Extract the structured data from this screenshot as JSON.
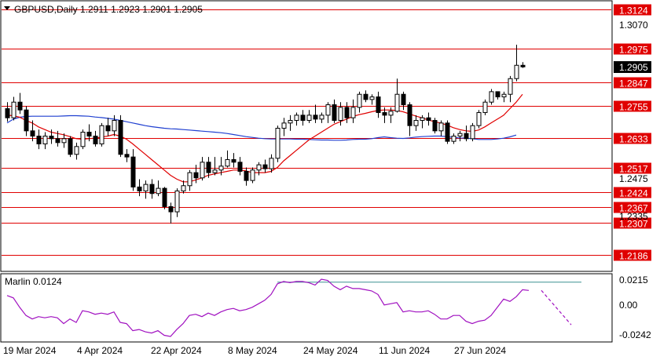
{
  "header": {
    "symbol_line": "GBPUSD,Daily  1.2911  1.2923  1.2901  1.2905"
  },
  "indicator": {
    "label": "Marlin 0.0124",
    "ticks": [
      "0.0215",
      "0.00",
      "-0.0242"
    ]
  },
  "price_axis": {
    "ticks": [
      "1.3070",
      "1.2475",
      "1.2335"
    ],
    "current_price": "1.2905"
  },
  "levels": [
    {
      "label": "1.3124",
      "value": 1.3124
    },
    {
      "label": "1.2975",
      "value": 1.2975
    },
    {
      "label": "1.2847",
      "value": 1.2847
    },
    {
      "label": "1.2755",
      "value": 1.2755
    },
    {
      "label": "1.2633",
      "value": 1.2633
    },
    {
      "label": "1.2517",
      "value": 1.2517
    },
    {
      "label": "1.2424",
      "value": 1.2424
    },
    {
      "label": "1.2367",
      "value": 1.2367
    },
    {
      "label": "1.2307",
      "value": 1.2307
    },
    {
      "label": "1.2186",
      "value": 1.2186
    }
  ],
  "time_axis": {
    "labels": [
      "19 Mar 2024",
      "4 Apr 2024",
      "22 Apr 2024",
      "8 May 2024",
      "24 May 2024",
      "11 Jun 2024",
      "27 Jun 2024"
    ]
  },
  "colors": {
    "level_line": "#e00000",
    "level_badge": "#e00000",
    "bull_fill": "#ffffff",
    "bear_fill": "#000000",
    "ma_fast": "#e00000",
    "ma_slow": "#1f3fd0",
    "oscillator": "#a010c0",
    "signal": "#3a9090"
  },
  "chart_data": {
    "type": "candlestick",
    "symbol": "GBPUSD",
    "timeframe": "Daily",
    "ylim": [
      1.2125,
      1.3155
    ],
    "candles": [
      [
        1.2745,
        1.277,
        1.2695,
        1.271
      ],
      [
        1.271,
        1.279,
        1.27,
        1.277
      ],
      [
        1.277,
        1.2805,
        1.2725,
        1.274
      ],
      [
        1.274,
        1.2755,
        1.264,
        1.266
      ],
      [
        1.266,
        1.27,
        1.262,
        1.264
      ],
      [
        1.264,
        1.2665,
        1.259,
        1.261
      ],
      [
        1.261,
        1.2655,
        1.259,
        1.264
      ],
      [
        1.264,
        1.2665,
        1.261,
        1.263
      ],
      [
        1.263,
        1.266,
        1.26,
        1.2615
      ],
      [
        1.2615,
        1.265,
        1.2595,
        1.263
      ],
      [
        1.263,
        1.264,
        1.256,
        1.257
      ],
      [
        1.257,
        1.2615,
        1.255,
        1.26
      ],
      [
        1.26,
        1.2665,
        1.259,
        1.2655
      ],
      [
        1.2655,
        1.2685,
        1.262,
        1.264
      ],
      [
        1.264,
        1.266,
        1.26,
        1.261
      ],
      [
        1.261,
        1.269,
        1.26,
        1.268
      ],
      [
        1.268,
        1.271,
        1.264,
        1.266
      ],
      [
        1.266,
        1.272,
        1.264,
        1.27
      ],
      [
        1.27,
        1.272,
        1.256,
        1.257
      ],
      [
        1.257,
        1.259,
        1.254,
        1.256
      ],
      [
        1.256,
        1.259,
        1.243,
        1.2445
      ],
      [
        1.2445,
        1.2475,
        1.241,
        1.243
      ],
      [
        1.243,
        1.247,
        1.24,
        1.2455
      ],
      [
        1.2455,
        1.2475,
        1.24,
        1.242
      ],
      [
        1.242,
        1.247,
        1.241,
        1.244
      ],
      [
        1.244,
        1.2445,
        1.236,
        1.237
      ],
      [
        1.237,
        1.2385,
        1.2305,
        1.235
      ],
      [
        1.235,
        1.244,
        1.233,
        1.243
      ],
      [
        1.243,
        1.247,
        1.242,
        1.245
      ],
      [
        1.245,
        1.251,
        1.243,
        1.25
      ],
      [
        1.25,
        1.253,
        1.246,
        1.248
      ],
      [
        1.248,
        1.256,
        1.247,
        1.254
      ],
      [
        1.254,
        1.256,
        1.248,
        1.25
      ],
      [
        1.25,
        1.256,
        1.249,
        1.251
      ],
      [
        1.251,
        1.256,
        1.249,
        1.2525
      ],
      [
        1.2525,
        1.2585,
        1.252,
        1.255
      ],
      [
        1.255,
        1.2575,
        1.252,
        1.254
      ],
      [
        1.254,
        1.256,
        1.249,
        1.2505
      ],
      [
        1.2505,
        1.252,
        1.245,
        1.247
      ],
      [
        1.247,
        1.252,
        1.246,
        1.251
      ],
      [
        1.251,
        1.254,
        1.249,
        1.253
      ],
      [
        1.253,
        1.255,
        1.25,
        1.2515
      ],
      [
        1.2515,
        1.257,
        1.25,
        1.2555
      ],
      [
        1.2555,
        1.268,
        1.254,
        1.267
      ],
      [
        1.267,
        1.271,
        1.264,
        1.269
      ],
      [
        1.269,
        1.272,
        1.266,
        1.27
      ],
      [
        1.27,
        1.273,
        1.268,
        1.272
      ],
      [
        1.272,
        1.274,
        1.268,
        1.27
      ],
      [
        1.27,
        1.274,
        1.269,
        1.272
      ],
      [
        1.272,
        1.276,
        1.269,
        1.2705
      ],
      [
        1.2705,
        1.273,
        1.269,
        1.272
      ],
      [
        1.272,
        1.277,
        1.269,
        1.276
      ],
      [
        1.276,
        1.278,
        1.269,
        1.27
      ],
      [
        1.27,
        1.277,
        1.268,
        1.275
      ],
      [
        1.275,
        1.277,
        1.269,
        1.271
      ],
      [
        1.271,
        1.278,
        1.269,
        1.275
      ],
      [
        1.275,
        1.281,
        1.273,
        1.28
      ],
      [
        1.28,
        1.2815,
        1.277,
        1.278
      ],
      [
        1.278,
        1.28,
        1.276,
        1.279
      ],
      [
        1.279,
        1.281,
        1.271,
        1.273
      ],
      [
        1.273,
        1.275,
        1.269,
        1.272
      ],
      [
        1.272,
        1.275,
        1.269,
        1.2735
      ],
      [
        1.2735,
        1.286,
        1.273,
        1.28
      ],
      [
        1.28,
        1.281,
        1.274,
        1.276
      ],
      [
        1.276,
        1.277,
        1.264,
        1.268
      ],
      [
        1.268,
        1.272,
        1.266,
        1.27
      ],
      [
        1.27,
        1.272,
        1.267,
        1.271
      ],
      [
        1.271,
        1.273,
        1.268,
        1.27
      ],
      [
        1.27,
        1.271,
        1.265,
        1.266
      ],
      [
        1.266,
        1.27,
        1.264,
        1.269
      ],
      [
        1.269,
        1.27,
        1.261,
        1.262
      ],
      [
        1.262,
        1.265,
        1.261,
        1.264
      ],
      [
        1.264,
        1.266,
        1.262,
        1.265
      ],
      [
        1.265,
        1.268,
        1.262,
        1.263
      ],
      [
        1.263,
        1.269,
        1.262,
        1.268
      ],
      [
        1.268,
        1.274,
        1.267,
        1.273
      ],
      [
        1.273,
        1.278,
        1.272,
        1.277
      ],
      [
        1.277,
        1.282,
        1.276,
        1.281
      ],
      [
        1.281,
        1.281,
        1.278,
        1.279
      ],
      [
        1.279,
        1.281,
        1.277,
        1.28
      ],
      [
        1.28,
        1.287,
        1.277,
        1.286
      ],
      [
        1.286,
        1.299,
        1.285,
        1.2911
      ],
      [
        1.2911,
        1.2923,
        1.2901,
        1.2905
      ]
    ],
    "ma_fast": [
      1.272,
      1.2718,
      1.2712,
      1.27,
      1.269,
      1.2675,
      1.2665,
      1.2655,
      1.265,
      1.2645,
      1.2638,
      1.263,
      1.2628,
      1.263,
      1.2632,
      1.2636,
      1.264,
      1.2646,
      1.264,
      1.2628,
      1.261,
      1.259,
      1.257,
      1.255,
      1.253,
      1.251,
      1.249,
      1.2475,
      1.2465,
      1.2465,
      1.2472,
      1.248,
      1.249,
      1.2495,
      1.25,
      1.2505,
      1.251,
      1.251,
      1.2507,
      1.25,
      1.25,
      1.25,
      1.2505,
      1.252,
      1.2545,
      1.2565,
      1.2585,
      1.2605,
      1.2625,
      1.264,
      1.2655,
      1.267,
      1.2685,
      1.2695,
      1.2705,
      1.2715,
      1.2722,
      1.2727,
      1.2733,
      1.2738,
      1.274,
      1.274,
      1.2738,
      1.2733,
      1.2725,
      1.2717,
      1.271,
      1.2702,
      1.2695,
      1.269,
      1.2682,
      1.2672,
      1.2665,
      1.266,
      1.2658,
      1.2663,
      1.2675,
      1.269,
      1.2705,
      1.272,
      1.2745,
      1.277,
      1.28
    ],
    "ma_slow": [
      1.269,
      1.2705,
      1.2712,
      1.2715,
      1.2716,
      1.2716,
      1.2716,
      1.2716,
      1.2716,
      1.2717,
      1.2718,
      1.2718,
      1.2717,
      1.2716,
      1.2713,
      1.2711,
      1.2708,
      1.2705,
      1.27,
      1.2695,
      1.269,
      1.2685,
      1.268,
      1.2676,
      1.2673,
      1.267,
      1.2668,
      1.2667,
      1.2665,
      1.2663,
      1.2661,
      1.2659,
      1.2657,
      1.2655,
      1.2653,
      1.265,
      1.2646,
      1.2642,
      1.2638,
      1.2635,
      1.2632,
      1.263,
      1.2629,
      1.2629,
      1.2629,
      1.2629,
      1.2628,
      1.2628,
      1.2627,
      1.2626,
      1.2625,
      1.2625,
      1.2624,
      1.2624,
      1.2625,
      1.2627,
      1.2628,
      1.2628,
      1.263,
      1.2634,
      1.2637,
      1.2634,
      1.2632,
      1.2631,
      1.2633,
      1.2636,
      1.2638,
      1.2639,
      1.264,
      1.264,
      1.2638,
      1.2635,
      1.2633,
      1.2632,
      1.263,
      1.2627,
      1.2627,
      1.2627,
      1.2629,
      1.2632,
      1.2637,
      1.2644,
      null
    ],
    "oscillator": {
      "ylim": [
        -0.031,
        0.026
      ],
      "values": [
        0.008,
        0.006,
        -0.002,
        -0.009,
        -0.012,
        -0.01,
        -0.011,
        -0.01,
        -0.011,
        -0.016,
        -0.012,
        -0.015,
        -0.005,
        -0.006,
        -0.008,
        -0.007,
        -0.008,
        -0.006,
        -0.015,
        -0.016,
        -0.022,
        -0.021,
        -0.023,
        -0.024,
        -0.022,
        -0.026,
        -0.027,
        -0.021,
        -0.016,
        -0.009,
        -0.008,
        -0.01,
        -0.007,
        -0.009,
        -0.006,
        -0.004,
        -0.003,
        -0.005,
        -0.004,
        -0.002,
        0.001,
        0.004,
        0.009,
        0.018,
        0.02,
        0.019,
        0.02,
        0.02,
        0.019,
        0.017,
        0.022,
        0.021,
        0.016,
        0.013,
        0.016,
        0.014,
        0.014,
        0.013,
        0.012,
        0.009,
        0.0,
        0.001,
        0.002,
        -0.006,
        -0.005,
        -0.006,
        -0.006,
        -0.005,
        -0.008,
        -0.012,
        -0.012,
        -0.009,
        -0.009,
        -0.014,
        -0.016,
        -0.014,
        -0.013,
        -0.009,
        -0.002,
        0.005,
        0.003,
        0.007,
        0.013,
        0.0124
      ],
      "signal": 0.0195,
      "forecast": [
        0.0124,
        -0.017
      ]
    }
  }
}
